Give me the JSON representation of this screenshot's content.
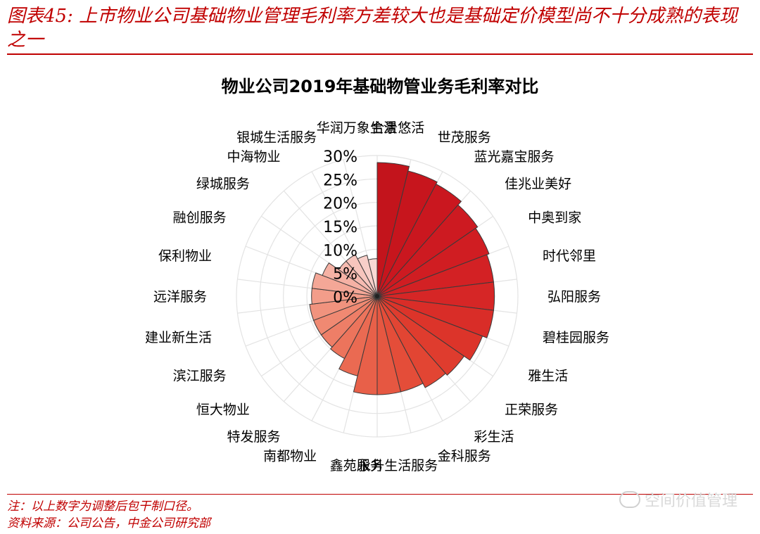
{
  "figure": {
    "title": "图表45: 上市物业公司基础物业管理毛利率方差较大也是基础定价模型尚不十分成熟的表现之一",
    "note": "注：以上数字为调整后包干制口径。",
    "source": "资料来源：公司公告，中金公司研究部",
    "watermark": "空间价值管理"
  },
  "chart_data": {
    "type": "polar_bar",
    "title": "物业公司2019年基础物管业务毛利率对比",
    "unit": "%",
    "rlim": [
      0,
      30
    ],
    "ticks": [
      "0%",
      "5%",
      "10%",
      "15%",
      "20%",
      "25%",
      "30%"
    ],
    "grid": true,
    "categories": [
      "合景悠活",
      "世茂服务",
      "蓝光嘉宝服务",
      "佳兆业美好",
      "中奥到家",
      "时代邻里",
      "弘阳服务",
      "碧桂园服务",
      "雅生活",
      "正荣服务",
      "彩生活",
      "金科服务",
      "永升生活服务",
      "鑫苑服务",
      "南都物业",
      "特发服务",
      "恒大物业",
      "滨江服务",
      "建业新生活",
      "远洋服务",
      "保利物业",
      "融创服务",
      "绿城服务",
      "中海物业",
      "银城生活服务",
      "华润万象生活"
    ],
    "values": [
      28.5,
      27.5,
      27.0,
      26.0,
      25.5,
      25.0,
      25.0,
      25.0,
      24.0,
      22.5,
      22.0,
      21.0,
      21.0,
      21.0,
      17.5,
      15.0,
      14.5,
      14.5,
      14.5,
      14.0,
      14.0,
      12.5,
      10.0,
      10.0,
      9.0,
      8.0
    ],
    "colors": [
      "#c3141c",
      "#c7151d",
      "#ca171f",
      "#cd1a21",
      "#d01d22",
      "#d32124",
      "#d62626",
      "#d92d28",
      "#dc342a",
      "#df3c2e",
      "#e24533",
      "#e44d39",
      "#e65741",
      "#e86049",
      "#ea6a52",
      "#ec745c",
      "#ee7e67",
      "#f08972",
      "#f1937e",
      "#f39d8a",
      "#f4a797",
      "#f5b1a4",
      "#f6bbb1",
      "#f7c5bd",
      "#f8cfc9",
      "#f9d9d4"
    ]
  }
}
